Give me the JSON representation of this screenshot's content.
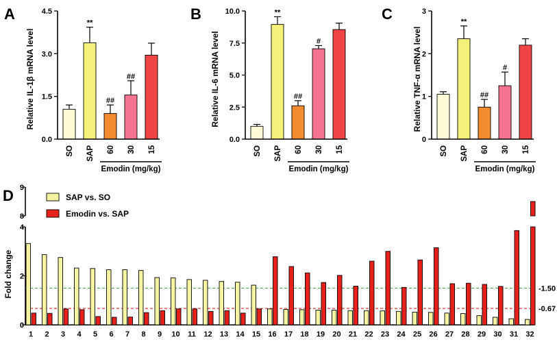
{
  "panels": [
    {
      "letter": "A",
      "ylabel": "Relative IL-1β mRNA level",
      "ylim": [
        0,
        4.5
      ],
      "yticks": [
        "0.0",
        "1.5",
        "3.0",
        "4.5"
      ],
      "ytick_values": [
        0,
        1.5,
        3.0,
        4.5
      ],
      "group_label": "Emodin (mg/kg)",
      "categories": [
        "SO",
        "SAP",
        "60",
        "30",
        "15"
      ],
      "values": [
        1.05,
        3.38,
        0.9,
        1.55,
        2.95
      ],
      "errors": [
        0.15,
        0.55,
        0.3,
        0.5,
        0.42
      ],
      "significance": [
        "",
        "**",
        "##",
        "##",
        ""
      ]
    },
    {
      "letter": "B",
      "ylabel": "Relative IL-6 mRNA level",
      "ylim": [
        0,
        10
      ],
      "yticks": [
        "0.0",
        "2.5",
        "5.0",
        "7.5",
        "10.0"
      ],
      "ytick_values": [
        0,
        2.5,
        5.0,
        7.5,
        10.0
      ],
      "group_label": "Emodin (mg/kg)",
      "categories": [
        "SO",
        "SAP",
        "60",
        "30",
        "15"
      ],
      "values": [
        1.0,
        8.95,
        2.6,
        7.05,
        8.55
      ],
      "errors": [
        0.15,
        0.6,
        0.4,
        0.25,
        0.5
      ],
      "significance": [
        "",
        "**",
        "##",
        "#",
        ""
      ]
    },
    {
      "letter": "C",
      "ylabel": "Relative TNF-α mRNA level",
      "ylim": [
        0,
        3
      ],
      "yticks": [
        "0",
        "1",
        "2",
        "3"
      ],
      "ytick_values": [
        0,
        1,
        2,
        3
      ],
      "group_label": "Emodin (mg/kg)",
      "categories": [
        "SO",
        "SAP",
        "60",
        "30",
        "15"
      ],
      "values": [
        1.05,
        2.35,
        0.75,
        1.25,
        2.2
      ],
      "errors": [
        0.06,
        0.3,
        0.18,
        0.32,
        0.15
      ],
      "significance": [
        "",
        "**",
        "##",
        "#",
        ""
      ]
    }
  ],
  "bar_colors": [
    "#fffbd6",
    "#f4f07a",
    "#f28a2e",
    "#f4738f",
    "#f04545"
  ],
  "panel_d": {
    "letter": "D",
    "ylabel": "Fold change",
    "upper_ticks": [
      "8",
      "9"
    ],
    "lower_ticks": [
      "0",
      "2",
      "4"
    ],
    "lower_ylim": [
      0,
      4
    ],
    "upper_ylim": [
      8,
      9
    ],
    "threshold_high": "1.50",
    "threshold_low": "0.67",
    "threshold_high_value": 1.5,
    "threshold_low_value": 0.67,
    "legend": [
      "SAP vs. SO",
      "Emodin vs. SAP"
    ],
    "colors": {
      "sap_vs_so": "#f6f3a2",
      "emodin_vs_sap": "#e8201c",
      "line_high": "#3a9a3a",
      "line_low": "#e8201c"
    },
    "categories": [
      "1",
      "2",
      "3",
      "4",
      "5",
      "6",
      "7",
      "8",
      "9",
      "10",
      "11",
      "12",
      "13",
      "14",
      "15",
      "16",
      "17",
      "18",
      "19",
      "20",
      "21",
      "22",
      "23",
      "24",
      "25",
      "26",
      "27",
      "28",
      "29",
      "30",
      "31",
      "32"
    ],
    "sap_vs_so": [
      3.32,
      2.87,
      2.75,
      2.32,
      2.3,
      2.25,
      2.25,
      2.22,
      1.93,
      1.92,
      1.85,
      1.82,
      1.77,
      1.74,
      1.62,
      0.65,
      0.63,
      0.62,
      0.6,
      0.6,
      0.58,
      0.58,
      0.57,
      0.55,
      0.52,
      0.51,
      0.48,
      0.46,
      0.38,
      0.31,
      0.25,
      0.22
    ],
    "emodin_vs_sap": [
      0.48,
      0.47,
      0.65,
      0.62,
      0.34,
      0.31,
      0.32,
      0.5,
      0.58,
      0.65,
      0.65,
      0.55,
      0.58,
      0.48,
      0.65,
      2.78,
      2.38,
      2.12,
      1.73,
      2.02,
      1.58,
      2.6,
      3.0,
      1.53,
      2.65,
      3.15,
      1.68,
      1.7,
      1.65,
      1.57,
      3.85,
      8.5
    ]
  }
}
